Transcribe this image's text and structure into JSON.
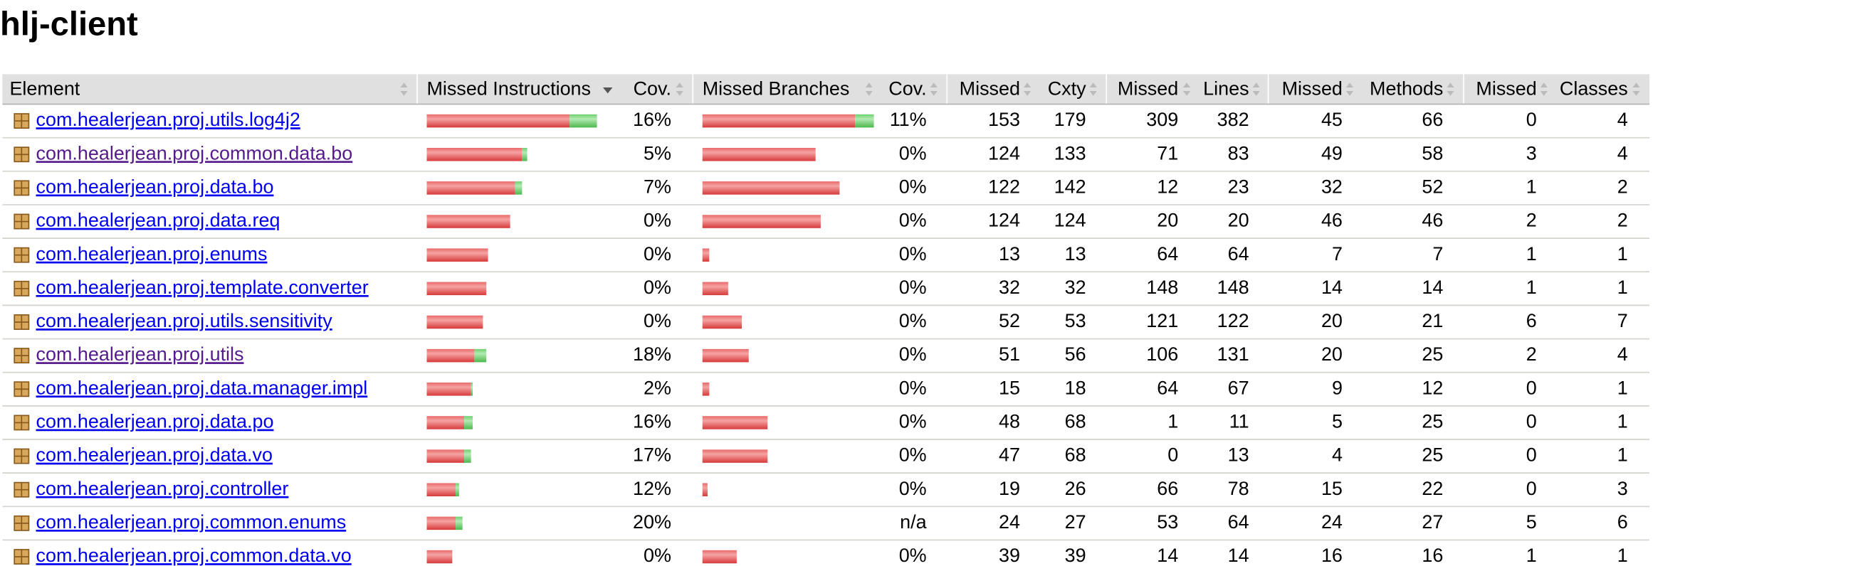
{
  "title": "hlj-client",
  "table": {
    "headers": [
      "Element",
      "Missed Instructions",
      "Cov.",
      "Missed Branches",
      "Cov.",
      "Missed",
      "Cxty",
      "Missed",
      "Lines",
      "Missed",
      "Methods",
      "Missed",
      "Classes"
    ],
    "rows": [
      {
        "element": "com.healerjean.proj.utils.log4j2",
        "visited": false,
        "instr_bar": [
          84,
          16
        ],
        "branch_bar": [
          89,
          11
        ],
        "cells": [
          "16%",
          "11%",
          "153",
          "179",
          "309",
          "382",
          "45",
          "66",
          "0",
          "4"
        ]
      },
      {
        "element": "com.healerjean.proj.common.data.bo",
        "visited": true,
        "instr_bar": [
          56,
          3
        ],
        "branch_bar": [
          66,
          0
        ],
        "cells": [
          "5%",
          "0%",
          "124",
          "133",
          "71",
          "83",
          "49",
          "58",
          "3",
          "4"
        ]
      },
      {
        "element": "com.healerjean.proj.data.bo",
        "visited": false,
        "instr_bar": [
          52,
          4
        ],
        "branch_bar": [
          80,
          0
        ],
        "cells": [
          "7%",
          "0%",
          "122",
          "142",
          "12",
          "23",
          "32",
          "52",
          "1",
          "2"
        ]
      },
      {
        "element": "com.healerjean.proj.data.req",
        "visited": false,
        "instr_bar": [
          49,
          0
        ],
        "branch_bar": [
          69,
          0
        ],
        "cells": [
          "0%",
          "0%",
          "124",
          "124",
          "20",
          "20",
          "46",
          "46",
          "2",
          "2"
        ]
      },
      {
        "element": "com.healerjean.proj.enums",
        "visited": false,
        "instr_bar": [
          36,
          0
        ],
        "branch_bar": [
          4,
          0
        ],
        "cells": [
          "0%",
          "0%",
          "13",
          "13",
          "64",
          "64",
          "7",
          "7",
          "1",
          "1"
        ]
      },
      {
        "element": "com.healerjean.proj.template.converter",
        "visited": false,
        "instr_bar": [
          35,
          0
        ],
        "branch_bar": [
          15,
          0
        ],
        "cells": [
          "0%",
          "0%",
          "32",
          "32",
          "148",
          "148",
          "14",
          "14",
          "1",
          "1"
        ]
      },
      {
        "element": "com.healerjean.proj.utils.sensitivity",
        "visited": false,
        "instr_bar": [
          33,
          0
        ],
        "branch_bar": [
          23,
          0
        ],
        "cells": [
          "0%",
          "0%",
          "52",
          "53",
          "121",
          "122",
          "20",
          "21",
          "6",
          "7"
        ]
      },
      {
        "element": "com.healerjean.proj.utils",
        "visited": true,
        "instr_bar": [
          28,
          7
        ],
        "branch_bar": [
          27,
          0
        ],
        "cells": [
          "18%",
          "0%",
          "51",
          "56",
          "106",
          "131",
          "20",
          "25",
          "2",
          "4"
        ]
      },
      {
        "element": "com.healerjean.proj.data.manager.impl",
        "visited": false,
        "instr_bar": [
          26,
          1
        ],
        "branch_bar": [
          4,
          0
        ],
        "cells": [
          "2%",
          "0%",
          "15",
          "18",
          "64",
          "67",
          "9",
          "12",
          "0",
          "1"
        ]
      },
      {
        "element": "com.healerjean.proj.data.po",
        "visited": false,
        "instr_bar": [
          22,
          5
        ],
        "branch_bar": [
          38,
          0
        ],
        "cells": [
          "16%",
          "0%",
          "48",
          "68",
          "1",
          "11",
          "5",
          "25",
          "0",
          "1"
        ]
      },
      {
        "element": "com.healerjean.proj.data.vo",
        "visited": false,
        "instr_bar": [
          22,
          4
        ],
        "branch_bar": [
          38,
          0
        ],
        "cells": [
          "17%",
          "0%",
          "47",
          "68",
          "0",
          "13",
          "4",
          "25",
          "0",
          "1"
        ]
      },
      {
        "element": "com.healerjean.proj.controller",
        "visited": false,
        "instr_bar": [
          17,
          2
        ],
        "branch_bar": [
          3,
          0
        ],
        "cells": [
          "12%",
          "0%",
          "19",
          "26",
          "66",
          "78",
          "15",
          "22",
          "0",
          "3"
        ]
      },
      {
        "element": "com.healerjean.proj.common.enums",
        "visited": false,
        "instr_bar": [
          17,
          4
        ],
        "branch_bar": null,
        "cells": [
          "20%",
          "n/a",
          "24",
          "27",
          "53",
          "64",
          "24",
          "27",
          "5",
          "6"
        ]
      },
      {
        "element": "com.healerjean.proj.common.data.vo",
        "visited": false,
        "instr_bar": [
          15,
          0
        ],
        "branch_bar": [
          20,
          0
        ],
        "cells": [
          "0%",
          "0%",
          "39",
          "39",
          "14",
          "14",
          "16",
          "16",
          "1",
          "1"
        ]
      }
    ]
  }
}
